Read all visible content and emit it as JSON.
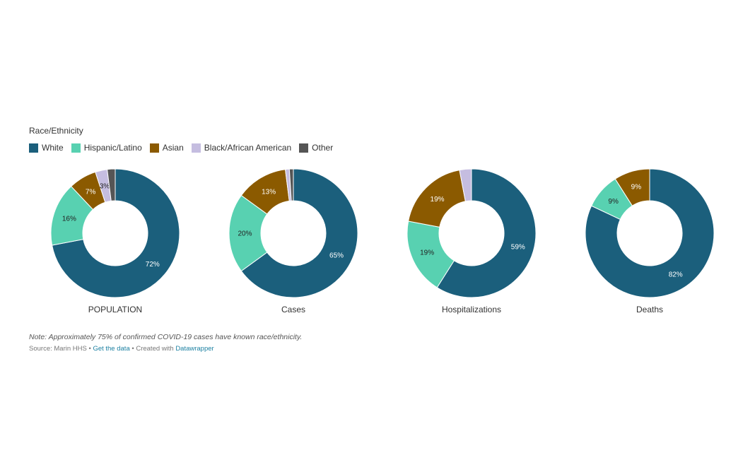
{
  "legend": {
    "title": "Race/Ethnicity",
    "items": [
      {
        "label": "White",
        "color": "#1b5f7c"
      },
      {
        "label": "Hispanic/Latino",
        "color": "#58d1b1"
      },
      {
        "label": "Asian",
        "color": "#8b5a00"
      },
      {
        "label": "Black/African American",
        "color": "#c5bde0"
      },
      {
        "label": "Other",
        "color": "#555555"
      }
    ]
  },
  "note": "Note: Approximately 75% of confirmed COVID-19 cases have known race/ethnicity.",
  "source": {
    "prefix": "Source: Marin HHS • ",
    "get_data": "Get the data",
    "middle": " • Created with ",
    "tool": "Datawrapper"
  },
  "chart_data": [
    {
      "type": "pie",
      "title": "POPULATION",
      "categories": [
        "White",
        "Hispanic/Latino",
        "Asian",
        "Black/African American",
        "Other"
      ],
      "values": [
        72,
        16,
        7,
        3,
        2
      ],
      "labels": [
        "72%",
        "16%",
        "7%",
        "3%",
        ""
      ]
    },
    {
      "type": "pie",
      "title": "Cases",
      "categories": [
        "White",
        "Hispanic/Latino",
        "Asian",
        "Black/African American",
        "Other"
      ],
      "values": [
        65,
        20,
        13,
        1,
        1
      ],
      "labels": [
        "65%",
        "20%",
        "13%",
        "",
        ""
      ]
    },
    {
      "type": "pie",
      "title": "Hospitalizations",
      "categories": [
        "White",
        "Hispanic/Latino",
        "Asian",
        "Black/African American",
        "Other"
      ],
      "values": [
        59,
        19,
        19,
        3,
        0
      ],
      "labels": [
        "59%",
        "19%",
        "19%",
        "",
        ""
      ]
    },
    {
      "type": "pie",
      "title": "Deaths",
      "categories": [
        "White",
        "Hispanic/Latino",
        "Asian",
        "Black/African American",
        "Other"
      ],
      "values": [
        82,
        9,
        9,
        0,
        0
      ],
      "labels": [
        "82%",
        "9%",
        "9%",
        "",
        ""
      ]
    }
  ]
}
